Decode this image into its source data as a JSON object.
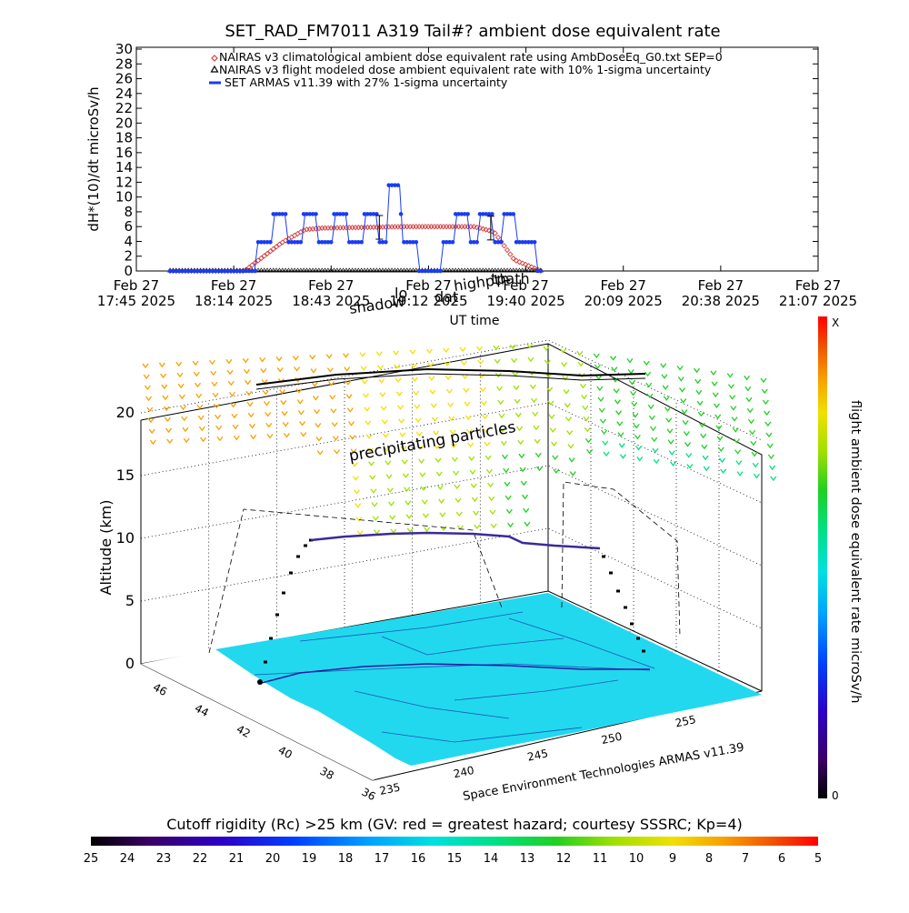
{
  "chart_data": [
    {
      "type": "scatter",
      "title": "SET_RAD_FM7011  A319 Tail#? ambient dose equivalent rate",
      "ylabel": "dH*(10)/dt microSv/h",
      "xlabel": "UT time",
      "ylim": [
        0,
        30
      ],
      "xlim": [
        "2025-02-27 17:45",
        "2025-02-27 21:07"
      ],
      "y_ticks": [
        "0",
        "2",
        "4",
        "6",
        "8",
        "10",
        "12",
        "14",
        "16",
        "18",
        "20",
        "22",
        "24",
        "26",
        "28",
        "30"
      ],
      "x_ticks": [
        {
          "l1": "Feb 27",
          "l2": "17:45 2025"
        },
        {
          "l1": "Feb 27",
          "l2": "18:14 2025"
        },
        {
          "l1": "Feb 27",
          "l2": "18:43 2025"
        },
        {
          "l1": "Feb 27",
          "l2": "19:12 2025"
        },
        {
          "l1": "Feb 27",
          "l2": "19:40 2025"
        },
        {
          "l1": "Feb 27",
          "l2": "20:09 2025"
        },
        {
          "l1": "Feb 27",
          "l2": "20:38 2025"
        },
        {
          "l1": "Feb 27",
          "l2": "21:07 2025"
        }
      ],
      "legend": [
        {
          "label": "NAIRAS v3 climatological ambient dose equivalent rate using AmbDoseEq_G0.txt SEP=0",
          "color": "#d04040",
          "marker": "diamond"
        },
        {
          "label": "NAIRAS v3 flight modeled dose ambient equivalent rate with 10% 1-sigma uncertainty",
          "color": "#000000",
          "marker": "triangle"
        },
        {
          "label": "SET ARMAS v11.39 with 27% 1-sigma uncertainty",
          "color": "#1a3cf0",
          "marker": "dot"
        }
      ],
      "legend_position": "top",
      "series": [
        {
          "name": "NAIRAS v3 climatological ambient dose equivalent rate using AmbDoseEq_G0.txt SEP=0",
          "x_range_min": [
            10,
            120
          ],
          "profile": [
            [
              10,
              0
            ],
            [
              32,
              0
            ],
            [
              43,
              3.8
            ],
            [
              50,
              5.6
            ],
            [
              55,
              5.8
            ],
            [
              80,
              6.0
            ],
            [
              100,
              6.0
            ],
            [
              106,
              5.3
            ],
            [
              112,
              1.5
            ],
            [
              120,
              0
            ]
          ]
        },
        {
          "name": "NAIRAS v3 flight modeled dose ambient equivalent rate with 10% 1-sigma uncertainty",
          "x_range_min": [
            10,
            120
          ],
          "value": 0
        },
        {
          "name": "SET ARMAS v11.39 with 27% 1-sigma uncertainty",
          "x_range_min": [
            10,
            120
          ],
          "profile": [
            [
              10,
              0
            ],
            [
              35,
              0
            ],
            [
              36,
              3.9
            ],
            [
              40,
              3.9
            ],
            [
              41,
              7.7
            ],
            [
              44,
              7.7
            ],
            [
              45,
              3.9
            ],
            [
              49,
              3.9
            ],
            [
              50,
              7.7
            ],
            [
              53,
              7.7
            ],
            [
              54,
              3.9
            ],
            [
              58,
              3.9
            ],
            [
              59,
              7.7
            ],
            [
              62,
              7.7
            ],
            [
              63,
              3.9
            ],
            [
              67,
              3.9
            ],
            [
              68,
              7.7
            ],
            [
              71,
              7.7
            ],
            [
              72,
              3.9
            ],
            [
              74,
              3.9
            ],
            [
              75,
              11.6
            ],
            [
              78,
              11.6
            ],
            [
              79,
              3.9
            ],
            [
              83,
              3.9
            ],
            [
              84,
              0
            ],
            [
              90,
              0
            ],
            [
              91,
              3.9
            ],
            [
              94,
              3.9
            ],
            [
              95,
              7.7
            ],
            [
              98,
              7.7
            ],
            [
              99,
              3.9
            ],
            [
              101,
              3.9
            ],
            [
              102,
              7.7
            ],
            [
              105,
              7.7
            ],
            [
              106,
              3.9
            ],
            [
              108,
              3.9
            ],
            [
              109,
              7.7
            ],
            [
              112,
              7.7
            ],
            [
              113,
              3.9
            ],
            [
              118,
              3.9
            ],
            [
              119,
              0
            ],
            [
              120,
              0
            ]
          ]
        }
      ],
      "error_bars": [
        {
          "x_min": 72,
          "y": 5.9,
          "err": 1.6
        },
        {
          "x_min": 105,
          "y": 5.8,
          "err": 1.6
        }
      ],
      "overlay_labels": [
        "shadow",
        "lo",
        "dat",
        "highpth",
        "tpath"
      ]
    },
    {
      "type": "scatter",
      "zlabel": "Altitude (km)",
      "z_ticks": [
        "0",
        "5",
        "10",
        "15",
        "20"
      ],
      "lat_ticks": [
        "46",
        "44",
        "42",
        "40",
        "38",
        "36"
      ],
      "lon_ticks": [
        "235",
        "240",
        "245",
        "250",
        "255"
      ],
      "annotation": "precipitating particles",
      "credit": "Space Environment Technologies ARMAS v11.39",
      "flight_profile": {
        "time_min": [
          32,
          120
        ],
        "altitude_km": [
          0,
          10.1,
          10.1,
          10.4,
          10.4,
          9.9,
          9.9,
          0
        ]
      }
    }
  ],
  "color_scales": {
    "vertical": {
      "label": "flight ambient dose equivalent rate microSv/h",
      "top": "X",
      "bottom": "0"
    },
    "horizontal": {
      "title": "Cutoff rigidity (Rc) >25 km (GV: red = greatest hazard; courtesy SSSRC; Kp=4)",
      "ticks": [
        "25",
        "24",
        "23",
        "22",
        "21",
        "20",
        "19",
        "18",
        "17",
        "16",
        "15",
        "14",
        "13",
        "12",
        "11",
        "10",
        "9",
        "8",
        "7",
        "6",
        "5"
      ]
    }
  },
  "colors": {
    "nairas_climatological": "#d04040",
    "nairas_flight": "#000000",
    "armas": "#1a3cf0",
    "ground_land": "#22d8ee",
    "rainbow": [
      "#000000",
      "#3b0066",
      "#2c00c8",
      "#0040ff",
      "#00a0ff",
      "#00e0e0",
      "#00e080",
      "#20d020",
      "#a0e000",
      "#f0e000",
      "#f8a000",
      "#f05000",
      "#ff0000"
    ]
  }
}
